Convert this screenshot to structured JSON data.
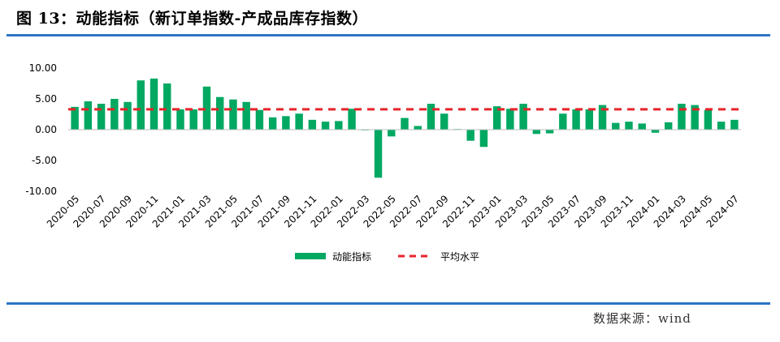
{
  "header": {
    "title": "图 13：动能指标（新订单指数-产成品库存指数）"
  },
  "footer": {
    "source": "数据来源：wind"
  },
  "colors": {
    "bar": "#00a862",
    "avg": "#e8232a",
    "rule": "#2e75c6"
  },
  "chart_data": {
    "type": "bar",
    "title": "",
    "xlabel": "",
    "ylabel": "",
    "ylim": [
      -10,
      10
    ],
    "yticks": [
      "10.00",
      "5.00",
      "0.00",
      "-5.00",
      "-10.00"
    ],
    "ytick_values": [
      10,
      5,
      0,
      -5,
      -10
    ],
    "categories": [
      "2020-05",
      "2020-06",
      "2020-07",
      "2020-08",
      "2020-09",
      "2020-10",
      "2020-11",
      "2020-12",
      "2021-01",
      "2021-02",
      "2021-03",
      "2021-04",
      "2021-05",
      "2021-06",
      "2021-07",
      "2021-08",
      "2021-09",
      "2021-10",
      "2021-11",
      "2021-12",
      "2022-01",
      "2022-02",
      "2022-03",
      "2022-04",
      "2022-05",
      "2022-06",
      "2022-07",
      "2022-08",
      "2022-09",
      "2022-10",
      "2022-11",
      "2022-12",
      "2023-01",
      "2023-02",
      "2023-03",
      "2023-04",
      "2023-05",
      "2023-06",
      "2023-07",
      "2023-08",
      "2023-09",
      "2023-10",
      "2023-11",
      "2023-12",
      "2024-01",
      "2024-02",
      "2024-03",
      "2024-04",
      "2024-05",
      "2024-06",
      "2024-07"
    ],
    "xtick_labels": [
      "2020-05",
      "2020-07",
      "2020-09",
      "2020-11",
      "2021-01",
      "2021-03",
      "2021-05",
      "2021-07",
      "2021-09",
      "2021-11",
      "2022-01",
      "2022-03",
      "2022-05",
      "2022-07",
      "2022-09",
      "2022-11",
      "2023-01",
      "2023-03",
      "2023-05",
      "2023-07",
      "2023-09",
      "2023-11",
      "2024-01",
      "2024-03",
      "2024-05",
      "2024-07"
    ],
    "series": [
      {
        "name": "动能指标",
        "type": "bar",
        "values": [
          3.7,
          4.6,
          4.2,
          5.0,
          4.5,
          8.0,
          8.3,
          7.5,
          3.3,
          3.3,
          7.0,
          5.3,
          4.9,
          4.5,
          3.2,
          2.0,
          2.2,
          2.6,
          1.6,
          1.3,
          1.4,
          3.4,
          -0.1,
          -7.8,
          -1.1,
          1.9,
          0.6,
          4.2,
          2.6,
          0.1,
          -1.8,
          -2.8,
          3.8,
          3.4,
          4.2,
          -0.7,
          -0.6,
          2.6,
          3.3,
          3.3,
          4.0,
          1.1,
          1.3,
          1.0,
          -0.5,
          1.2,
          4.2,
          4.0,
          3.2,
          1.3,
          1.6
        ]
      },
      {
        "name": "平均水平",
        "type": "line",
        "value": 3.3
      }
    ],
    "grid": false,
    "legend": "bottom-center"
  }
}
